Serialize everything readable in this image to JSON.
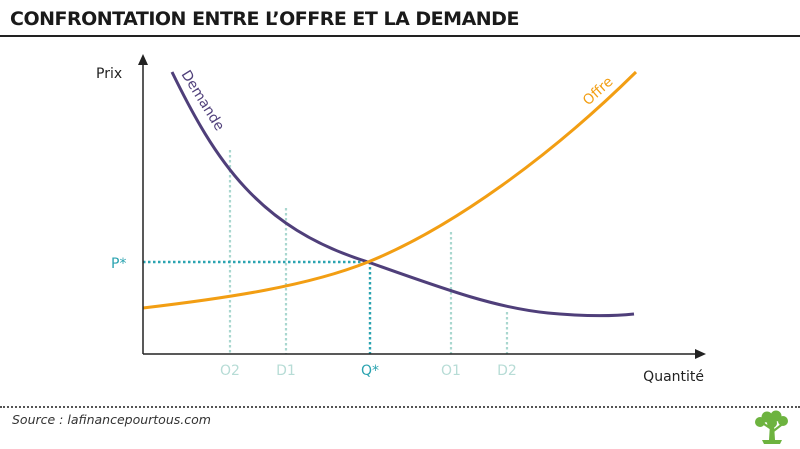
{
  "title": "CONFRONTATION ENTRE L’OFFRE ET LA DEMANDE",
  "axes": {
    "y_label": "Prix",
    "x_label": "Quantité"
  },
  "curves": {
    "demand_label": "Demande",
    "supply_label": "Offre"
  },
  "equilibrium": {
    "price_label": "P*",
    "quantity_label": "Q*"
  },
  "x_markers": [
    "O2",
    "D1",
    "O1",
    "D2"
  ],
  "source": "Source : lafinancepourtous.com",
  "colors": {
    "demand": "#4f3f7a",
    "supply": "#f29e13",
    "equilibrium": "#2aa3b0",
    "markers": "#a9d7cf",
    "marker_text": "#b7dcd6",
    "axis": "#222222",
    "logo": "#6db33f"
  }
}
